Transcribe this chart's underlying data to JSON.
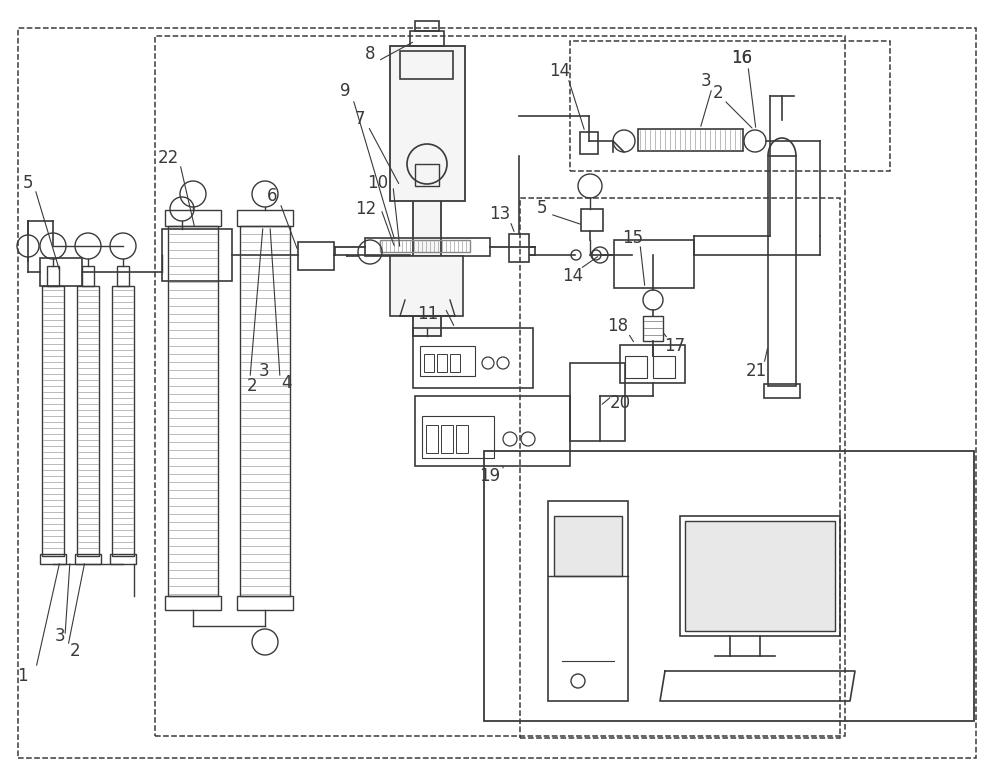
{
  "bg_color": "#ffffff",
  "line_color": "#3a3a3a",
  "gray_color": "#888888",
  "dash_color": "#3a3a3a",
  "fig_width": 10.0,
  "fig_height": 7.76,
  "dpi": 100
}
